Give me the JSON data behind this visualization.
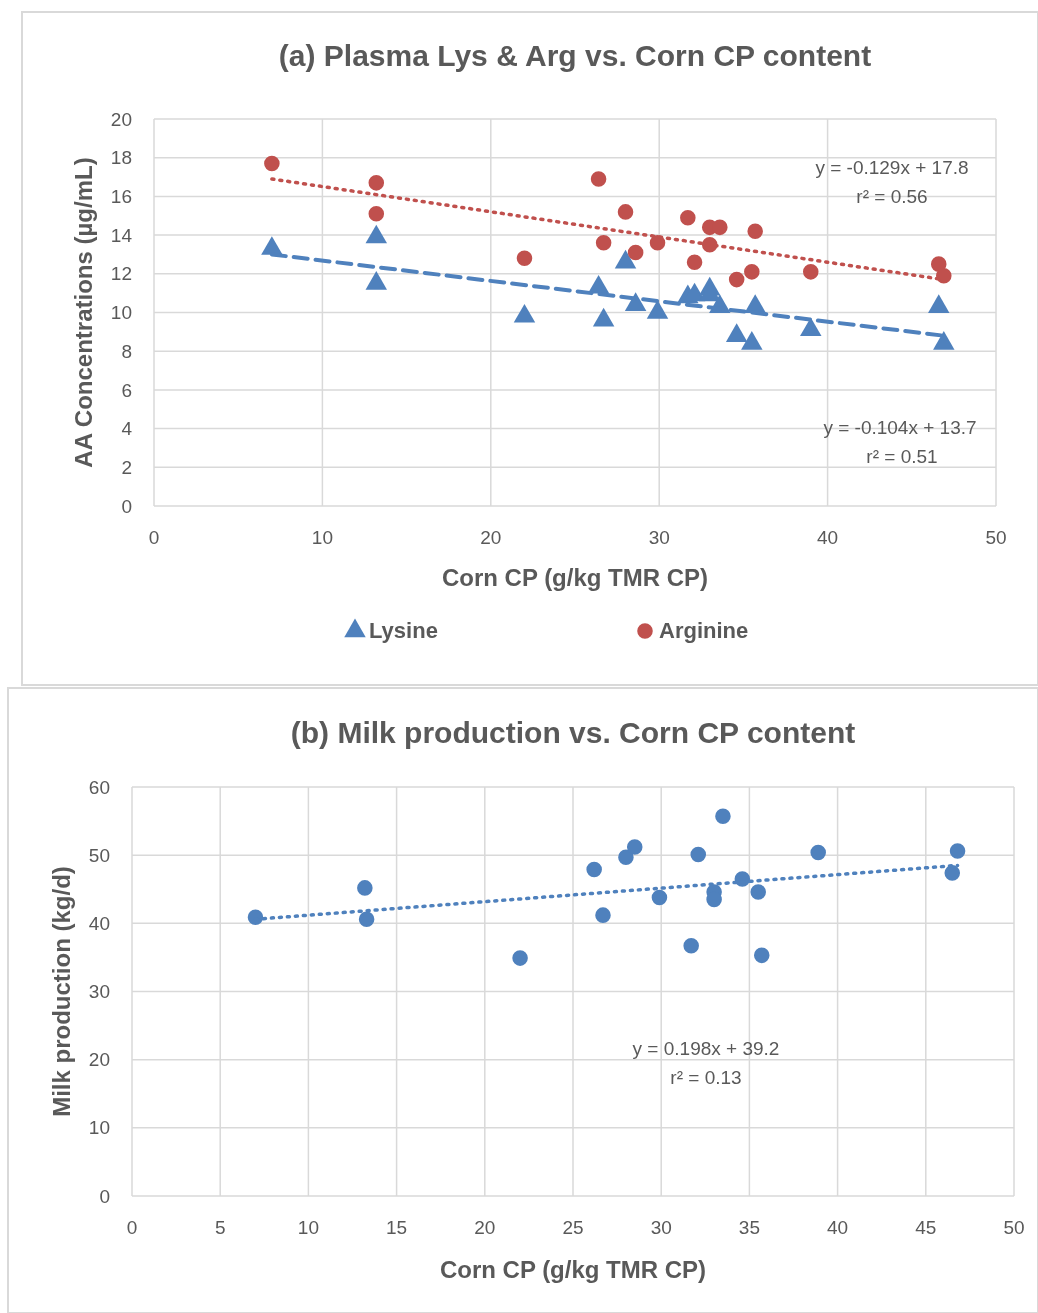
{
  "chart_data": [
    {
      "type": "scatter",
      "title": "(a) Plasma Lys & Arg vs. Corn CP content",
      "xlabel": "Corn CP (g/kg TMR CP)",
      "ylabel": "AA Concentrations (µg/mL)",
      "xlim": [
        0,
        50
      ],
      "xticks": [
        0,
        10,
        20,
        30,
        40,
        50
      ],
      "ylim": [
        0,
        20
      ],
      "yticks": [
        0,
        2,
        4,
        6,
        8,
        10,
        12,
        14,
        16,
        18,
        20
      ],
      "grid": true,
      "legend": "bottom",
      "series": [
        {
          "name": "Lysine",
          "color": "#4f81bd",
          "marker": "triangle",
          "x": [
            7.0,
            13.2,
            13.2,
            22.0,
            26.4,
            26.7,
            28.0,
            28.6,
            29.9,
            31.7,
            32.1,
            33.0,
            33.0,
            33.6,
            34.6,
            35.5,
            35.7,
            39.0,
            46.6,
            46.9
          ],
          "values": [
            13.3,
            13.9,
            11.5,
            9.8,
            11.3,
            9.6,
            12.6,
            10.4,
            10.0,
            10.8,
            10.9,
            11.2,
            10.9,
            10.3,
            8.8,
            8.4,
            10.3,
            9.1,
            10.3,
            8.4
          ]
        },
        {
          "name": "Arginine",
          "color": "#c0504d",
          "marker": "circle",
          "x": [
            7.0,
            13.2,
            13.2,
            22.0,
            26.4,
            26.7,
            28.0,
            28.6,
            29.9,
            31.7,
            32.1,
            33.0,
            33.0,
            33.6,
            34.6,
            35.5,
            35.7,
            39.0,
            46.6,
            46.9
          ],
          "values": [
            17.7,
            16.7,
            15.1,
            12.8,
            16.9,
            13.6,
            15.2,
            13.1,
            13.6,
            14.9,
            12.6,
            14.4,
            13.5,
            14.4,
            11.7,
            12.1,
            14.2,
            12.1,
            12.5,
            11.9
          ]
        },
        {
          "type": "line",
          "color": "#c0504d",
          "line_style": "dotted",
          "x": [
            7.0,
            46.9
          ],
          "values": [
            16.9,
            11.7
          ]
        },
        {
          "type": "line",
          "color": "#4f81bd",
          "line_style": "dashed",
          "x": [
            7.0,
            46.9
          ],
          "values": [
            13.0,
            8.8
          ]
        }
      ],
      "annotations": [
        "y = -0.129x + 17.8",
        "r² = 0.56",
        "y = -0.104x + 13.7",
        "r² = 0.51"
      ]
    },
    {
      "type": "scatter",
      "title": "(b) Milk production vs. Corn CP content",
      "xlabel": "Corn CP (g/kg TMR CP)",
      "ylabel": "Milk production (kg/d)",
      "xlim": [
        0,
        50
      ],
      "xticks": [
        0,
        5,
        10,
        15,
        20,
        25,
        30,
        35,
        40,
        45,
        50
      ],
      "ylim": [
        0,
        60
      ],
      "yticks": [
        0,
        10,
        20,
        30,
        40,
        50,
        60
      ],
      "grid": true,
      "series": [
        {
          "color": "#4f81bd",
          "marker": "circle",
          "x": [
            7.0,
            13.2,
            13.3,
            22.0,
            26.2,
            26.7,
            28.0,
            28.5,
            29.9,
            31.7,
            32.1,
            33.0,
            33.0,
            33.5,
            34.6,
            35.5,
            35.7,
            38.9,
            46.5,
            46.8
          ],
          "values": [
            40.9,
            45.2,
            40.6,
            34.9,
            47.9,
            41.2,
            49.7,
            51.2,
            43.8,
            36.7,
            50.1,
            44.6,
            43.5,
            55.7,
            46.5,
            44.6,
            35.3,
            50.4,
            47.4,
            50.6
          ]
        },
        {
          "type": "line",
          "color": "#4f81bd",
          "line_style": "dotted",
          "x": [
            7.0,
            46.8
          ],
          "values": [
            40.6,
            48.5
          ]
        }
      ],
      "annotations": [
        "y = 0.198x + 39.2",
        "r² = 0.13"
      ]
    }
  ]
}
